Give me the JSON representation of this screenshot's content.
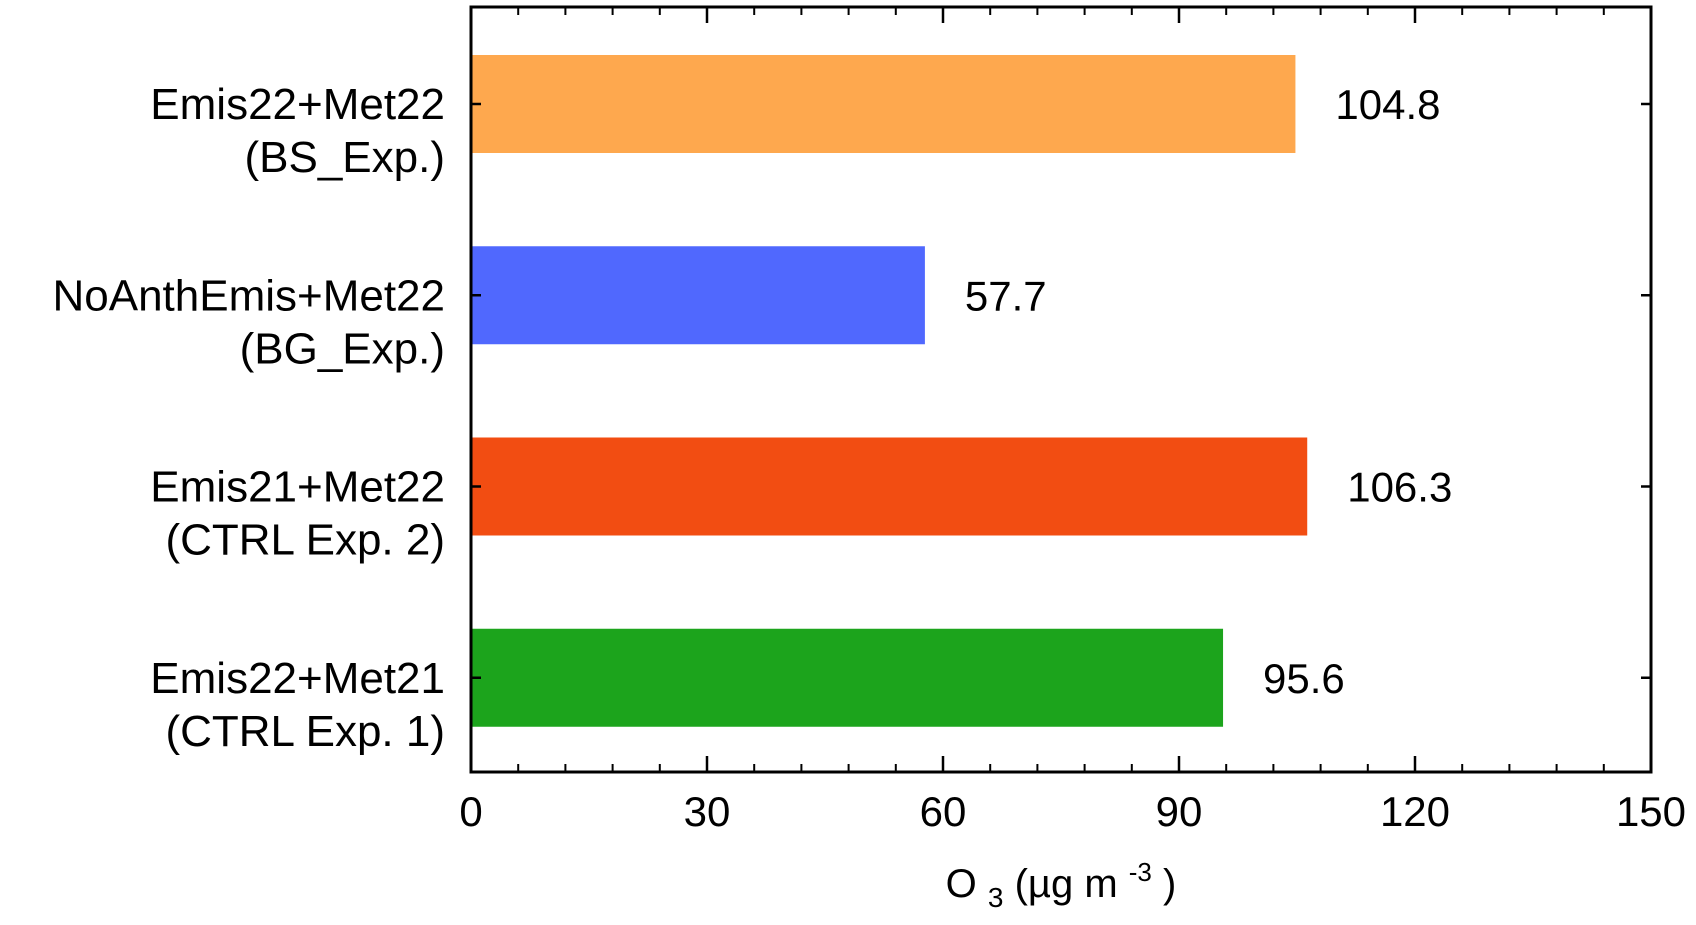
{
  "chart_data": {
    "type": "bar",
    "orientation": "horizontal",
    "categories": [
      {
        "line1": "Emis22+Met22",
        "line2": "(BS_Exp.)"
      },
      {
        "line1": "NoAnthEmis+Met22",
        "line2": "(BG_Exp.)"
      },
      {
        "line1": "Emis21+Met22",
        "line2": "(CTRL Exp. 2)"
      },
      {
        "line1": "Emis22+Met21",
        "line2": "(CTRL Exp. 1)"
      }
    ],
    "values": [
      104.8,
      57.7,
      106.3,
      95.6
    ],
    "value_labels": [
      "104.8",
      "57.7",
      "106.3",
      "95.6"
    ],
    "colors": [
      "#FEA84E",
      "#5068FE",
      "#F24D12",
      "#1CA41C"
    ],
    "xlim": [
      0,
      150
    ],
    "xticks": [
      0,
      30,
      60,
      90,
      120,
      150
    ],
    "xtick_labels": [
      "0",
      "30",
      "60",
      "90",
      "120",
      "150"
    ],
    "xlabel": {
      "prefix": "O",
      "subscript": "3",
      "middle": " (µg m",
      "superscript": "-3",
      "suffix": ")"
    },
    "title": "",
    "grid": false,
    "legend": "none"
  }
}
